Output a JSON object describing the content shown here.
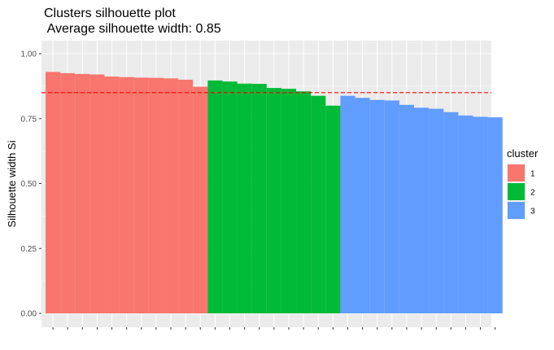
{
  "chart_data": {
    "type": "bar",
    "title": "Clusters silhouette plot",
    "subtitle": " Average silhouette width: 0.85",
    "xlabel": "",
    "ylabel": "Silhouette width Si",
    "ylim": [
      0,
      1.05
    ],
    "yticks": [
      0.0,
      0.25,
      0.5,
      0.75,
      1.0
    ],
    "ytick_labels": [
      "0.00",
      "0.25",
      "0.50",
      "0.75",
      "1.00"
    ],
    "grid": true,
    "average_line": {
      "value": 0.85,
      "color": "#FF0000",
      "style": "dashed"
    },
    "legend": {
      "title": "cluster",
      "position": "right",
      "entries": [
        {
          "label": "1",
          "color": "#F8766D"
        },
        {
          "label": "2",
          "color": "#00BA38"
        },
        {
          "label": "3",
          "color": "#619CFF"
        }
      ]
    },
    "series": [
      {
        "cluster": "1",
        "color": "#F8766D",
        "values": [
          0.93,
          0.925,
          0.922,
          0.92,
          0.912,
          0.91,
          0.908,
          0.907,
          0.905,
          0.9,
          0.873
        ]
      },
      {
        "cluster": "2",
        "color": "#00BA38",
        "values": [
          0.897,
          0.893,
          0.885,
          0.884,
          0.868,
          0.865,
          0.855,
          0.838,
          0.8
        ]
      },
      {
        "cluster": "3",
        "color": "#619CFF",
        "values": [
          0.838,
          0.83,
          0.822,
          0.82,
          0.803,
          0.792,
          0.788,
          0.775,
          0.762,
          0.757,
          0.755
        ]
      }
    ]
  }
}
